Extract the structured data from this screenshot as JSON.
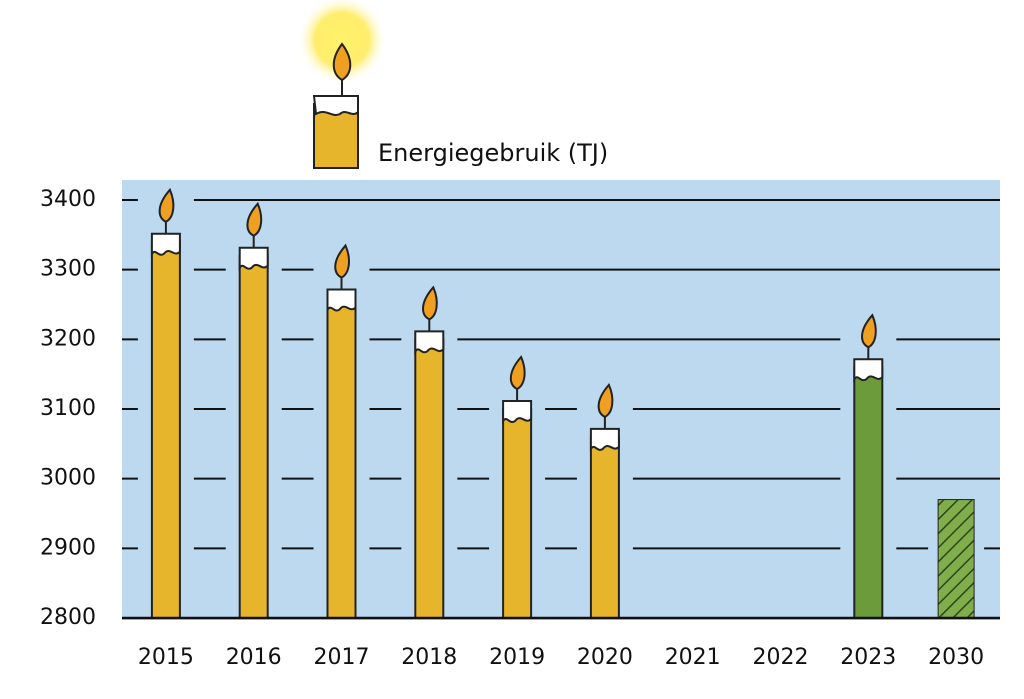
{
  "chart_data": {
    "type": "bar",
    "title": "Energiegebruik (TJ)",
    "categories": [
      "2015",
      "2016",
      "2017",
      "2018",
      "2019",
      "2020",
      "2021",
      "2022",
      "2023",
      "2030"
    ],
    "values": [
      3340,
      3320,
      3260,
      3200,
      3100,
      3060,
      null,
      null,
      3160,
      2970
    ],
    "colors": [
      "#e6b52c",
      "#e6b52c",
      "#e6b52c",
      "#e6b52c",
      "#e6b52c",
      "#e6b52c",
      null,
      null,
      "#6b9b3a",
      "#7fae4a"
    ],
    "bar_styles": [
      "candle",
      "candle",
      "candle",
      "candle",
      "candle",
      "candle",
      null,
      null,
      "candle",
      "hatched"
    ],
    "ylim": [
      2800,
      3400
    ],
    "yticks": [
      2800,
      2900,
      3000,
      3100,
      3200,
      3300,
      3400
    ],
    "grid": true,
    "background": "#bcd9ef"
  }
}
